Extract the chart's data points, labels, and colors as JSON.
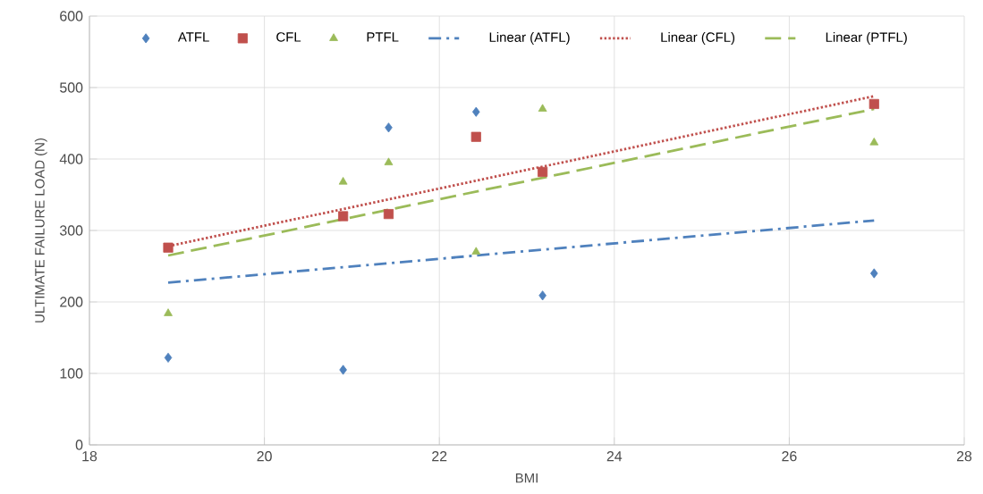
{
  "chart_data": {
    "type": "scatter",
    "xlabel": "BMI",
    "ylabel": "ULTIMATE FAILURE LOAD (N)",
    "xlim": [
      18,
      28
    ],
    "xticks": [
      18,
      20,
      22,
      24,
      26,
      28
    ],
    "ylim": [
      0,
      600
    ],
    "yticks": [
      0,
      100,
      200,
      300,
      400,
      500,
      600
    ],
    "grid": true,
    "legend": "top",
    "series": [
      {
        "name": "ATFL",
        "marker": "diamond",
        "color": "#4f81bd",
        "x": [
          18.9,
          20.9,
          21.42,
          22.42,
          23.18,
          26.97
        ],
        "values": [
          122,
          105,
          444,
          466,
          209,
          240
        ]
      },
      {
        "name": "CFL",
        "marker": "square",
        "color": "#c0504d",
        "x": [
          18.9,
          20.9,
          21.42,
          22.42,
          23.18,
          26.97
        ],
        "values": [
          276,
          320,
          323,
          431,
          382,
          477
        ]
      },
      {
        "name": "PTFL",
        "marker": "triangle",
        "color": "#9bbb59",
        "x": [
          18.9,
          20.9,
          21.42,
          22.42,
          23.18,
          26.97
        ],
        "values": [
          184,
          368,
          395,
          270,
          470,
          423
        ]
      },
      {
        "name": "Linear (ATFL)",
        "type": "line",
        "line_style": "dashdot",
        "color": "#4f81bd",
        "x": [
          18.9,
          26.97
        ],
        "values": [
          227,
          314
        ]
      },
      {
        "name": "Linear (CFL)",
        "type": "line",
        "line_style": "dotted",
        "color": "#c0504d",
        "x": [
          18.9,
          26.97
        ],
        "values": [
          278,
          488
        ]
      },
      {
        "name": "Linear (PTFL)",
        "type": "line",
        "line_style": "dashed",
        "color": "#9bbb59",
        "x": [
          18.9,
          26.97
        ],
        "values": [
          265,
          470
        ]
      }
    ]
  }
}
